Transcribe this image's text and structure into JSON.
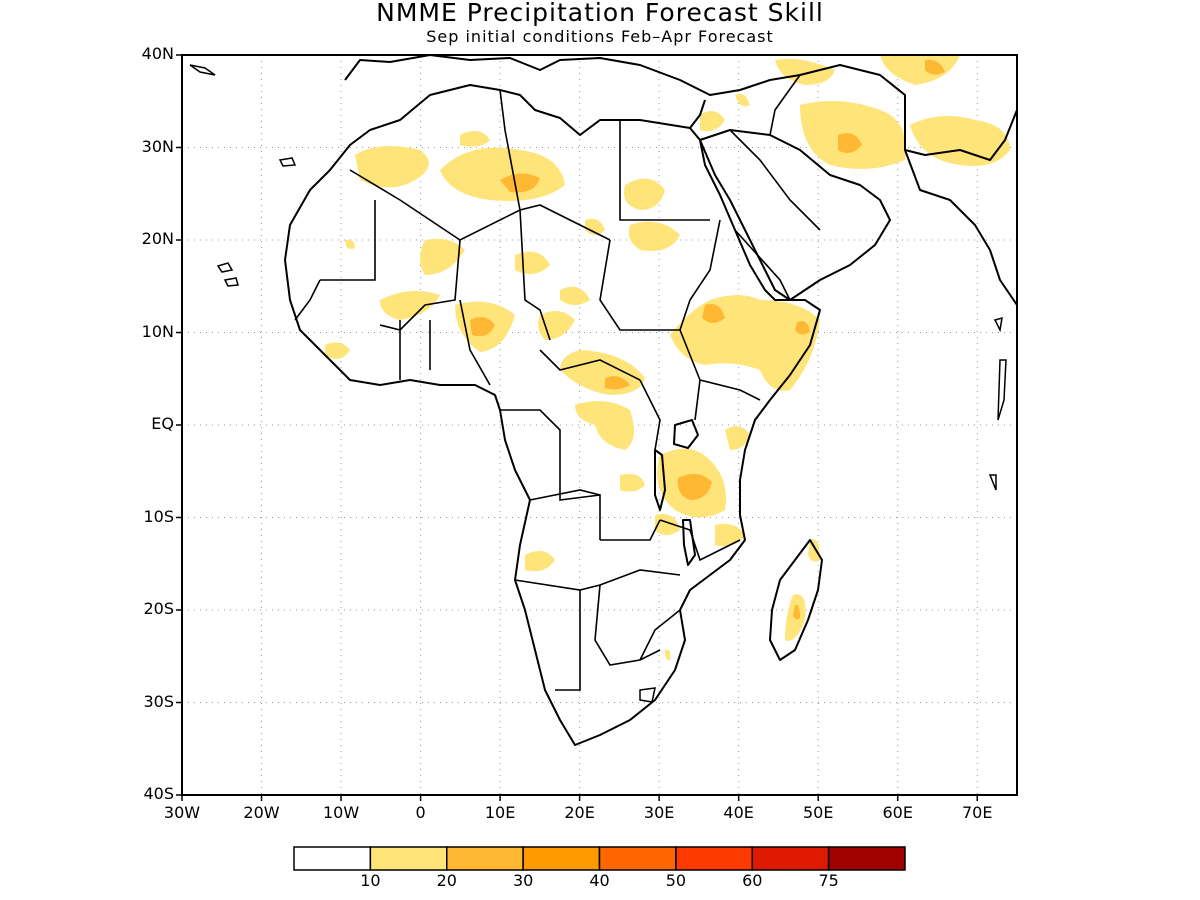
{
  "title": "NMME Precipitation Forecast Skill",
  "subtitle": "Sep initial conditions  Feb–Apr Forecast",
  "map": {
    "region": "Africa",
    "lon_range": [
      -30,
      75
    ],
    "lat_range": [
      -40,
      40
    ],
    "grid": "dotted",
    "lat_ticks": [
      "40N",
      "30N",
      "20N",
      "10N",
      "EQ",
      "10S",
      "20S",
      "30S",
      "40S"
    ],
    "lon_ticks": [
      "30W",
      "20W",
      "10W",
      "0",
      "10E",
      "20E",
      "30E",
      "40E",
      "50E",
      "60E",
      "70E"
    ]
  },
  "colorbar": {
    "colors": [
      "#ffffff",
      "#ffe47a",
      "#ffb833",
      "#ff9a00",
      "#ff6600",
      "#ff3a00",
      "#dd1a00",
      "#a00000"
    ],
    "labels": [
      "10",
      "20",
      "30",
      "40",
      "50",
      "60",
      "75"
    ]
  }
}
